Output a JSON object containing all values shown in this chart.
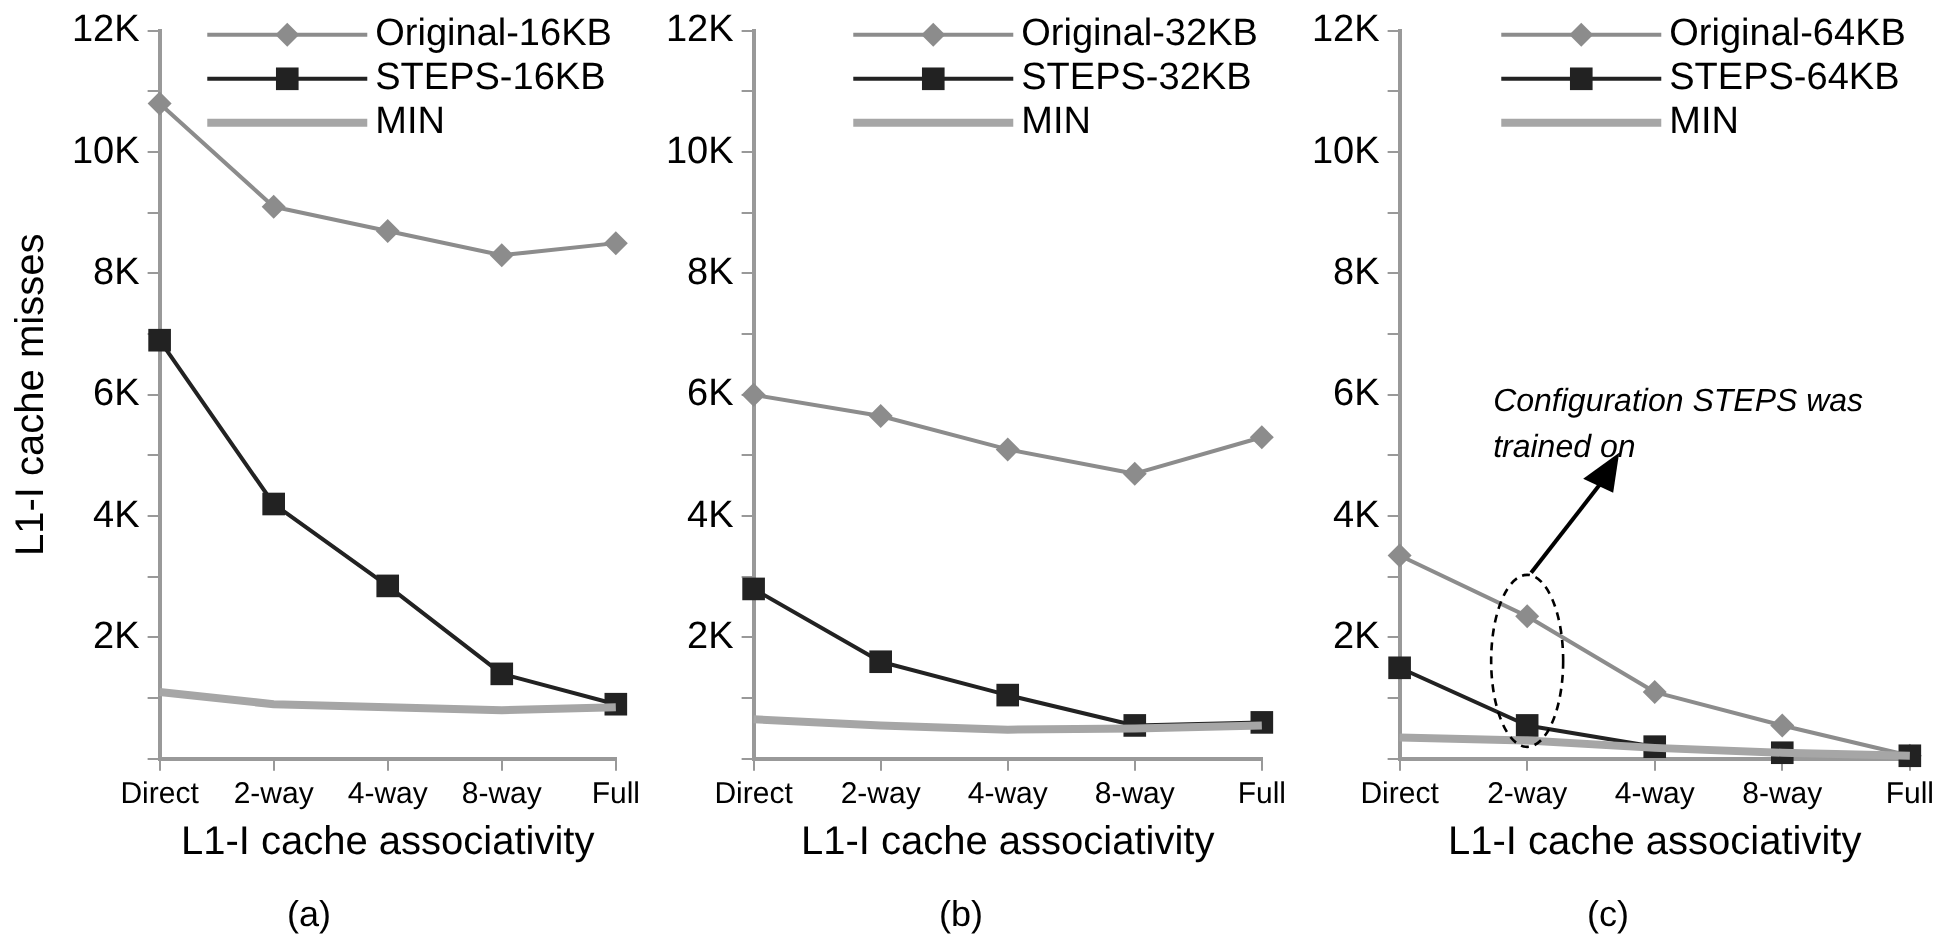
{
  "chart_data": [
    {
      "type": "line",
      "title": "(a)",
      "xlabel": "L1-I cache associativity",
      "ylabel": "L1-I cache misses",
      "categories": [
        "Direct",
        "2-way",
        "4-way",
        "8-way",
        "Full"
      ],
      "series": [
        {
          "name": "Original-16KB",
          "color": "#8c8c8c",
          "marker": "diamond",
          "values": [
            10800,
            9100,
            8700,
            8300,
            8500
          ]
        },
        {
          "name": "STEPS-16KB",
          "color": "#222222",
          "marker": "square",
          "values": [
            6900,
            4200,
            2850,
            1400,
            900
          ]
        },
        {
          "name": "MIN",
          "color": "#a6a6a6",
          "marker": "none",
          "values": [
            1100,
            900,
            850,
            800,
            850
          ]
        }
      ],
      "ylim": [
        0,
        12000
      ],
      "yticks": [
        {
          "value": 0,
          "label": null
        },
        {
          "value": 1000,
          "label": null
        },
        {
          "value": 2000,
          "label": "2K"
        },
        {
          "value": 3000,
          "label": null
        },
        {
          "value": 4000,
          "label": "4K"
        },
        {
          "value": 5000,
          "label": null
        },
        {
          "value": 6000,
          "label": "6K"
        },
        {
          "value": 7000,
          "label": null
        },
        {
          "value": 8000,
          "label": "8K"
        },
        {
          "value": 9000,
          "label": null
        },
        {
          "value": 10000,
          "label": "10K"
        },
        {
          "value": 11000,
          "label": null
        },
        {
          "value": 12000,
          "label": "12K"
        }
      ],
      "grid": false,
      "legend": "top right",
      "line_style": "solid"
    },
    {
      "type": "line",
      "title": "(b)",
      "xlabel": "L1-I cache associativity",
      "categories": [
        "Direct",
        "2-way",
        "4-way",
        "8-way",
        "Full"
      ],
      "series": [
        {
          "name": "Original-32KB",
          "color": "#8c8c8c",
          "marker": "diamond",
          "values": [
            6000,
            5650,
            5100,
            4700,
            5300
          ]
        },
        {
          "name": "STEPS-32KB",
          "color": "#222222",
          "marker": "square",
          "values": [
            2800,
            1600,
            1050,
            550,
            600
          ]
        },
        {
          "name": "MIN",
          "color": "#a6a6a6",
          "marker": "none",
          "values": [
            650,
            550,
            480,
            500,
            550
          ]
        }
      ],
      "ylim": [
        0,
        12000
      ],
      "yticks": [
        {
          "value": 0,
          "label": null
        },
        {
          "value": 1000,
          "label": null
        },
        {
          "value": 2000,
          "label": "2K"
        },
        {
          "value": 3000,
          "label": null
        },
        {
          "value": 4000,
          "label": "4K"
        },
        {
          "value": 5000,
          "label": null
        },
        {
          "value": 6000,
          "label": "6K"
        },
        {
          "value": 7000,
          "label": null
        },
        {
          "value": 8000,
          "label": "8K"
        },
        {
          "value": 9000,
          "label": null
        },
        {
          "value": 10000,
          "label": "10K"
        },
        {
          "value": 11000,
          "label": null
        },
        {
          "value": 12000,
          "label": "12K"
        }
      ],
      "grid": false,
      "legend": "top right",
      "line_style": "solid"
    },
    {
      "type": "line",
      "title": "(c)",
      "xlabel": "L1-I cache associativity",
      "categories": [
        "Direct",
        "2-way",
        "4-way",
        "8-way",
        "Full"
      ],
      "series": [
        {
          "name": "Original-64KB",
          "color": "#8c8c8c",
          "marker": "diamond",
          "values": [
            3350,
            2350,
            1100,
            550,
            50
          ]
        },
        {
          "name": "STEPS-64KB",
          "color": "#222222",
          "marker": "square",
          "values": [
            1500,
            550,
            200,
            100,
            50
          ]
        },
        {
          "name": "MIN",
          "color": "#a6a6a6",
          "marker": "none",
          "values": [
            350,
            300,
            180,
            100,
            50
          ]
        }
      ],
      "ylim": [
        0,
        12000
      ],
      "yticks": [
        {
          "value": 0,
          "label": null
        },
        {
          "value": 1000,
          "label": null
        },
        {
          "value": 2000,
          "label": "2K"
        },
        {
          "value": 3000,
          "label": null
        },
        {
          "value": 4000,
          "label": "4K"
        },
        {
          "value": 5000,
          "label": null
        },
        {
          "value": 6000,
          "label": "6K"
        },
        {
          "value": 7000,
          "label": null
        },
        {
          "value": 8000,
          "label": "8K"
        },
        {
          "value": 9000,
          "label": null
        },
        {
          "value": 10000,
          "label": "10K"
        },
        {
          "value": 11000,
          "label": null
        },
        {
          "value": 12000,
          "label": "12K"
        }
      ],
      "annotations": [
        "Configuration STEPS was trained on"
      ],
      "grid": false,
      "legend": "top right",
      "line_style": "solid"
    }
  ]
}
